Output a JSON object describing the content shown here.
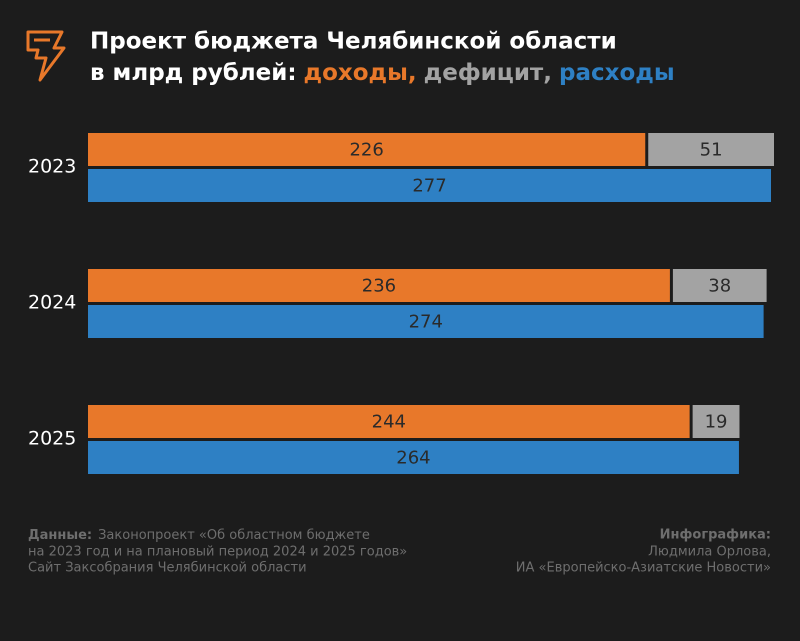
{
  "chart_data": {
    "type": "bar",
    "title": [
      "Проект бюджета Челябинской области",
      "в млрд рублей:"
    ],
    "categories": [
      "2023",
      "2024",
      "2025"
    ],
    "series": [
      {
        "name": "доходы,",
        "color": "#e8782a",
        "values": [
          226,
          236,
          244
        ]
      },
      {
        "name": "дефицит,",
        "color": "#a3a3a3",
        "values": [
          51,
          38,
          19
        ]
      },
      {
        "name": "расходы",
        "color": "#2e80c4",
        "values": [
          277,
          274,
          264
        ]
      }
    ]
  },
  "footer": {
    "source_label": "Данные:",
    "source_lines": [
      "Законопроект «Об областном бюджете",
      "на 2023 год и на плановый период 2024 и 2025 годов»",
      "Сайт Заксобрания Челябинской области"
    ],
    "credit_label": "Инфографика:",
    "credit_lines": [
      "Людмила Орлова,",
      "ИА «Европейско-Азиатские Новости»"
    ]
  }
}
